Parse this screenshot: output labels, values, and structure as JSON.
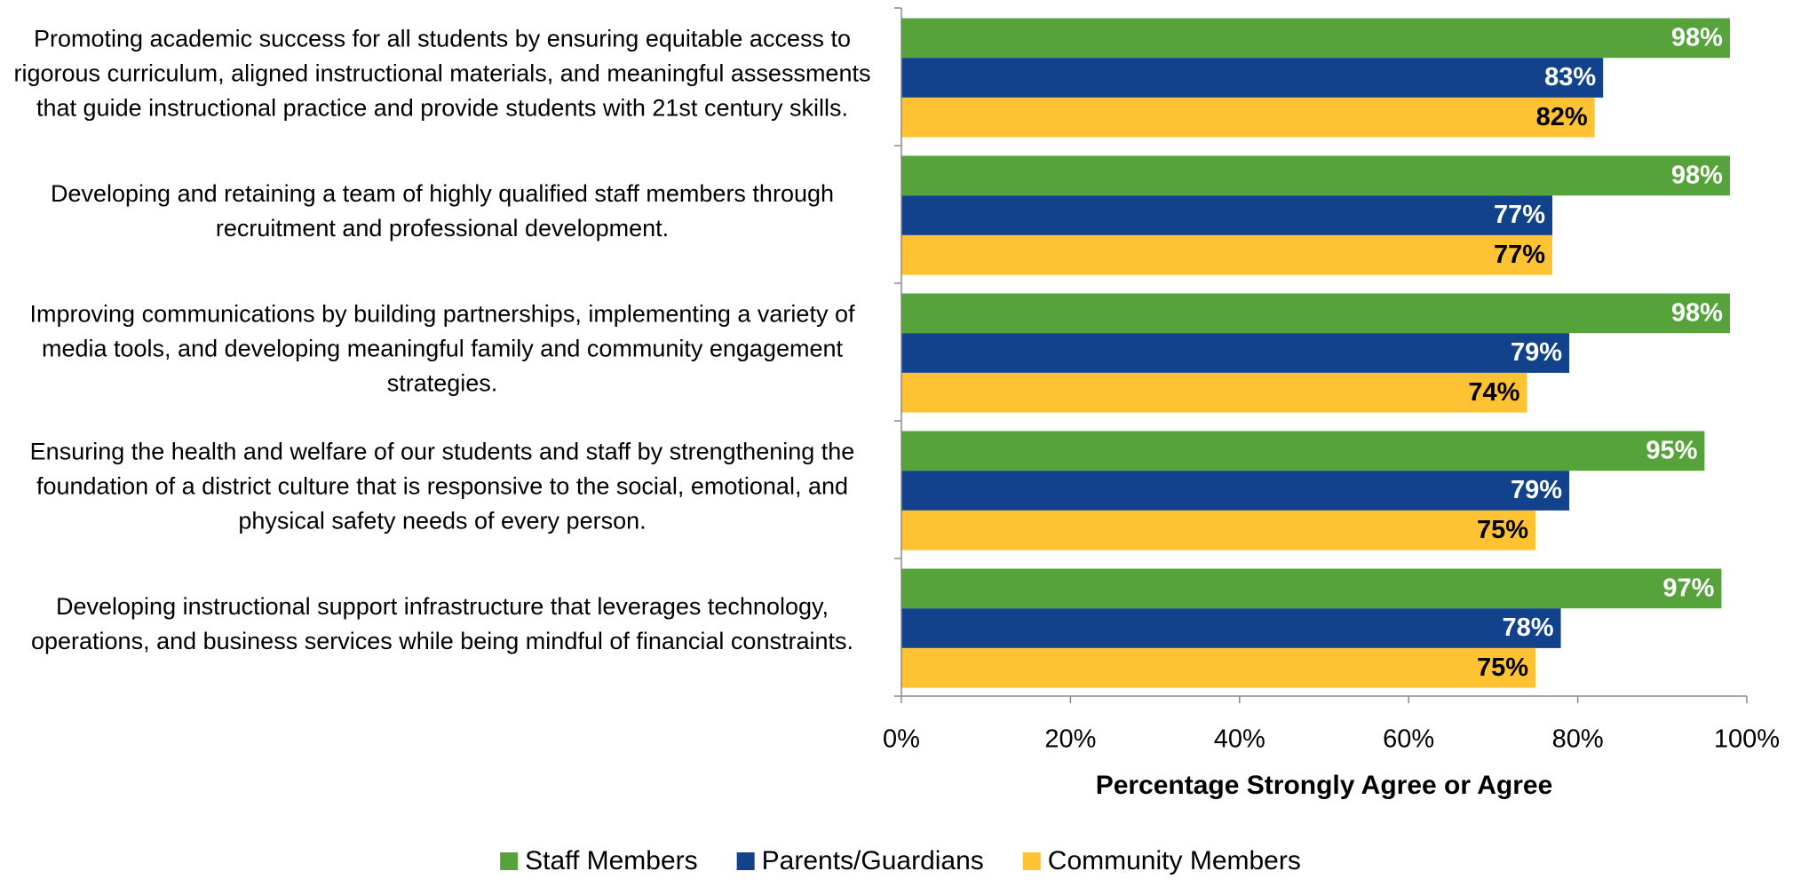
{
  "chart_data": {
    "type": "bar",
    "orientation": "horizontal",
    "categories": [
      "Promoting academic success for all students by ensuring equitable access to rigorous curriculum, aligned instructional materials, and meaningful assessments that guide instructional practice and provide students with 21st century skills.",
      "Developing and retaining a team of highly qualified staff members through recruitment and professional development.",
      "Improving communications by building partnerships, implementing a variety of media tools, and developing meaningful family and community engagement strategies.",
      "Ensuring the health and welfare of our students and staff by strengthening the foundation of a district culture that is responsive to the social, emotional, and physical safety needs of every person.",
      "Developing instructional support infrastructure that leverages technology, operations, and business services while being mindful of financial constraints."
    ],
    "series": [
      {
        "name": "Staff Members",
        "color": "#56a33b",
        "label_color": "#ffffff",
        "values": [
          98,
          98,
          98,
          95,
          97
        ],
        "value_labels": [
          "98%",
          "98%",
          "98%",
          "95%",
          "97%"
        ]
      },
      {
        "name": "Parents/Guardians",
        "color": "#12428c",
        "label_color": "#ffffff",
        "values": [
          83,
          77,
          79,
          79,
          78
        ],
        "value_labels": [
          "83%",
          "77%",
          "79%",
          "79%",
          "78%"
        ]
      },
      {
        "name": "Community Members",
        "color": "#fec232",
        "label_color": "#000000",
        "values": [
          82,
          77,
          74,
          75,
          75
        ],
        "value_labels": [
          "82%",
          "77%",
          "74%",
          "75%",
          "75%"
        ]
      }
    ],
    "xlabel": "Percentage Strongly Agree or Agree",
    "xlim": [
      0,
      100
    ],
    "xticks": [
      {
        "value": 0,
        "label": "0%"
      },
      {
        "value": 20,
        "label": "20%"
      },
      {
        "value": 40,
        "label": "40%"
      },
      {
        "value": 60,
        "label": "60%"
      },
      {
        "value": 80,
        "label": "80%"
      },
      {
        "value": 100,
        "label": "100%"
      }
    ],
    "legend": "bottom"
  }
}
